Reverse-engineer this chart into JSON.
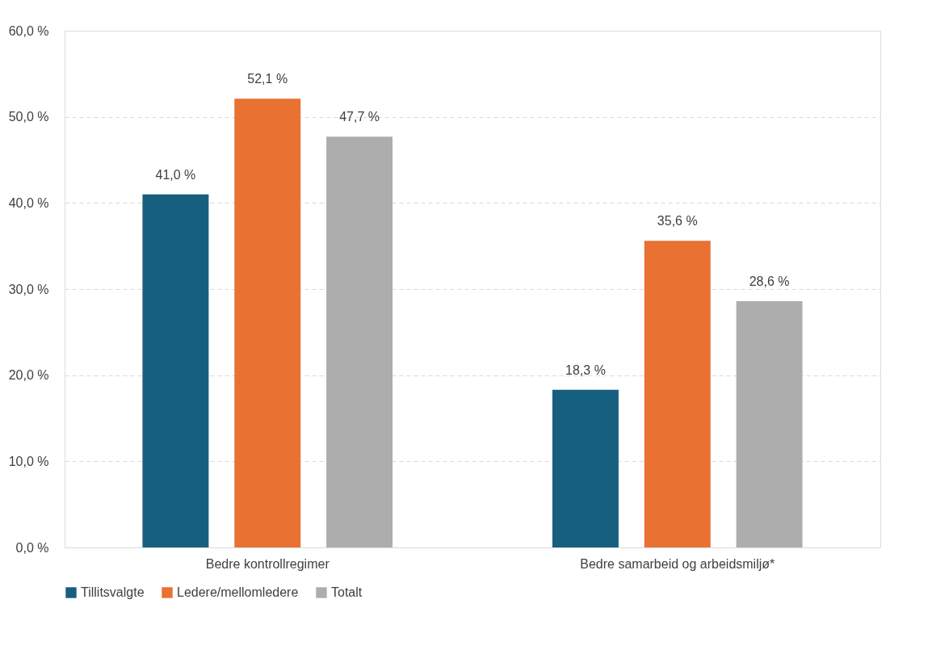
{
  "chart_data": {
    "type": "bar",
    "categories": [
      "Bedre kontrollregimer",
      "Bedre samarbeid og arbeidsmiljø*"
    ],
    "series": [
      {
        "name": "Tillitsvalgte",
        "color": "#175f7f",
        "values": [
          41.0,
          18.3
        ],
        "value_labels": [
          "41,0 %",
          "18,3 %"
        ]
      },
      {
        "name": "Ledere/mellomledere",
        "color": "#e97132",
        "values": [
          52.1,
          35.6
        ],
        "value_labels": [
          "52,1 %",
          "35,6 %"
        ]
      },
      {
        "name": "Totalt",
        "color": "#adadad",
        "values": [
          47.7,
          28.6
        ],
        "value_labels": [
          "47,7 %",
          "28,6 %"
        ]
      }
    ],
    "ylim": [
      0,
      60
    ],
    "yticks": [
      {
        "value": 0,
        "label": "0,0 %"
      },
      {
        "value": 10,
        "label": "10,0 %"
      },
      {
        "value": 20,
        "label": "20,0 %"
      },
      {
        "value": 30,
        "label": "30,0 %"
      },
      {
        "value": 40,
        "label": "40,0 %"
      },
      {
        "value": 50,
        "label": "50,0 %"
      },
      {
        "value": 60,
        "label": "60,0 %"
      }
    ],
    "grid": "y",
    "legend": "bottom"
  }
}
